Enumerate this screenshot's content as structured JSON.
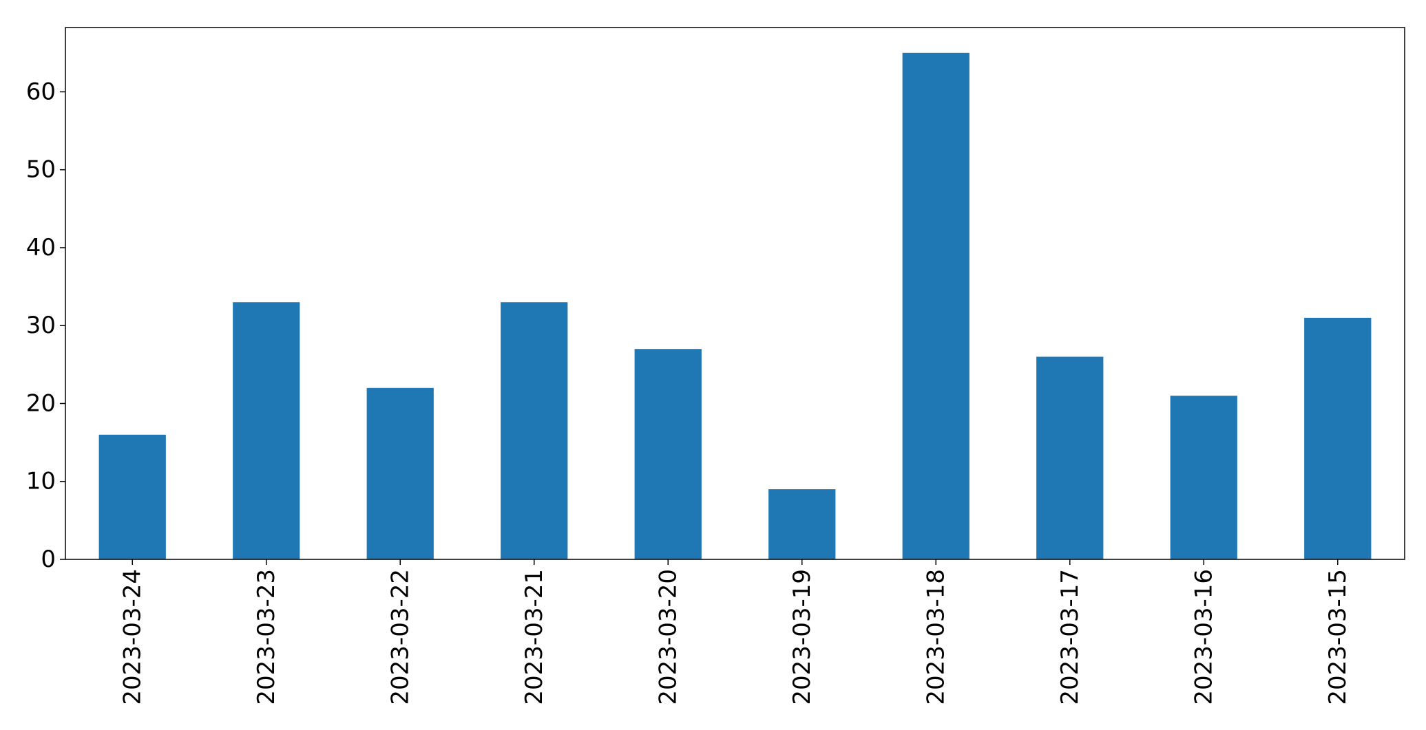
{
  "chart_data": {
    "type": "bar",
    "title": "",
    "xlabel": "",
    "ylabel": "",
    "categories": [
      "2023-03-24",
      "2023-03-23",
      "2023-03-22",
      "2023-03-21",
      "2023-03-20",
      "2023-03-19",
      "2023-03-18",
      "2023-03-17",
      "2023-03-16",
      "2023-03-15"
    ],
    "values": [
      16,
      33,
      22,
      33,
      27,
      9,
      65,
      26,
      21,
      31
    ],
    "ylim": [
      0,
      68.25
    ],
    "yticks": [
      0,
      10,
      20,
      30,
      40,
      50,
      60
    ],
    "grid": false,
    "legend": "none",
    "colors": {
      "bar": "#1f77b4",
      "axis": "#000000",
      "background": "#ffffff"
    }
  }
}
